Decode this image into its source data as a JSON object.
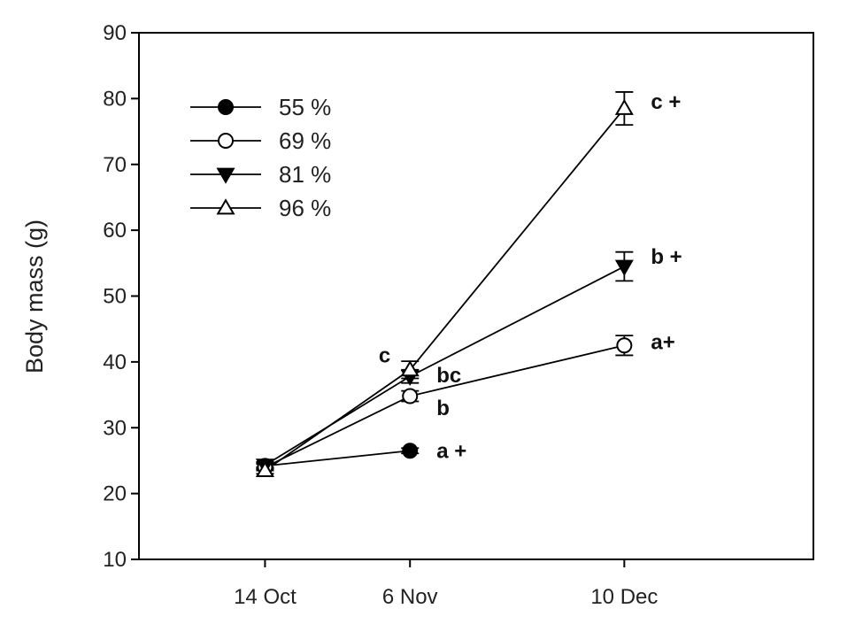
{
  "chart_data": {
    "type": "line",
    "ylabel": "Body mass (g)",
    "xlabel": "",
    "ylim": [
      10,
      90
    ],
    "yticks": [
      10,
      20,
      30,
      40,
      50,
      60,
      70,
      80,
      90
    ],
    "x_dates": [
      {
        "label": "14 Oct",
        "value": "2014-10-14"
      },
      {
        "label": "6 Nov",
        "value": "2014-11-06"
      },
      {
        "label": "10 Dec",
        "value": "2014-12-10"
      }
    ],
    "xlim": [
      "2014-09-24",
      "2015-01-09"
    ],
    "grid": false,
    "legend_position": "top-left",
    "series": [
      {
        "name": "55 %",
        "marker": "filled-circle",
        "values": [
          24.2,
          26.5,
          null
        ],
        "errors": [
          0.5,
          0.4,
          null
        ]
      },
      {
        "name": "69 %",
        "marker": "open-circle",
        "values": [
          24.0,
          34.8,
          42.5
        ],
        "errors": [
          0.5,
          0.8,
          1.5
        ]
      },
      {
        "name": "81 %",
        "marker": "filled-triangle-down",
        "values": [
          24.3,
          37.8,
          54.5
        ],
        "errors": [
          0.5,
          1.0,
          2.2
        ]
      },
      {
        "name": "96 %",
        "marker": "open-triangle-up",
        "values": [
          23.5,
          38.8,
          78.5
        ],
        "errors": [
          0.5,
          1.3,
          2.5
        ]
      }
    ],
    "annotations": [
      {
        "text": "a +",
        "x": "2014-11-06",
        "y": 26.5
      },
      {
        "text": "b",
        "x": "2014-11-06",
        "y": 33.0
      },
      {
        "text": "bc",
        "x": "2014-11-06",
        "y": 38.0
      },
      {
        "text": "c",
        "x": "2014-11-06",
        "y": 41.0
      },
      {
        "text": "a+",
        "x": "2014-12-10",
        "y": 43.0
      },
      {
        "text": "b +",
        "x": "2014-12-10",
        "y": 56.0
      },
      {
        "text": "c +",
        "x": "2014-12-10",
        "y": 79.5
      }
    ]
  }
}
